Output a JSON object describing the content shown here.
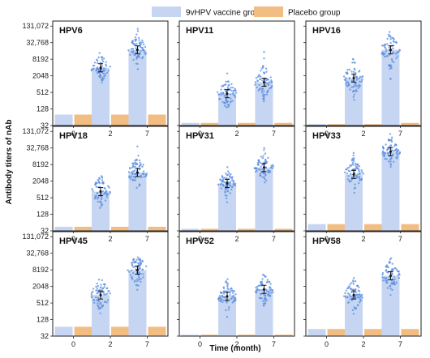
{
  "chart_data": {
    "type": "bar",
    "legend": {
      "position": "top",
      "entries": [
        {
          "name": "9vHPV vaccine group",
          "color": "#c6d6f2",
          "point_color": "#5b8ee0"
        },
        {
          "name": "Placebo group",
          "color": "#f2bd82",
          "point_color": "#e39a4a"
        }
      ]
    },
    "xlabel": "Time (month)",
    "ylabel": "Antibody titers of nAb",
    "categories": [
      "0",
      "2",
      "7"
    ],
    "y_scale": "log2",
    "yticks": [
      32,
      128,
      512,
      2048,
      8192,
      32768,
      131072
    ],
    "ytick_labels": [
      "32",
      "128",
      "512",
      "2048",
      "8192",
      "32,768",
      "131,072"
    ],
    "ylim": [
      32,
      200000
    ],
    "panels": [
      {
        "title": "HPV6",
        "vaccine_gmt": [
          80,
          4000,
          18000
        ],
        "placebo_gmt": [
          80,
          80,
          80
        ],
        "vaccine_spread": [
          0,
          0.55,
          0.6
        ]
      },
      {
        "title": "HPV11",
        "vaccine_gmt": [
          40,
          460,
          1200
        ],
        "placebo_gmt": [
          40,
          40,
          40
        ],
        "vaccine_spread": [
          0,
          0.6,
          0.6
        ]
      },
      {
        "title": "HPV16",
        "vaccine_gmt": [
          36,
          1700,
          18000
        ],
        "placebo_gmt": [
          36,
          36,
          40
        ],
        "vaccine_spread": [
          0,
          0.7,
          0.65
        ]
      },
      {
        "title": "HPV18",
        "vaccine_gmt": [
          45,
          850,
          4200
        ],
        "placebo_gmt": [
          45,
          45,
          45
        ],
        "vaccine_spread": [
          0,
          0.6,
          0.6
        ]
      },
      {
        "title": "HPV31",
        "vaccine_gmt": [
          38,
          1700,
          6400
        ],
        "placebo_gmt": [
          38,
          38,
          38
        ],
        "vaccine_spread": [
          0,
          0.5,
          0.55
        ]
      },
      {
        "title": "HPV33",
        "vaccine_gmt": [
          56,
          3600,
          24000
        ],
        "placebo_gmt": [
          56,
          56,
          56
        ],
        "vaccine_spread": [
          0,
          0.6,
          0.55
        ]
      },
      {
        "title": "HPV45",
        "vaccine_gmt": [
          70,
          1000,
          8000
        ],
        "placebo_gmt": [
          70,
          70,
          70
        ],
        "vaccine_spread": [
          0,
          0.65,
          0.6
        ]
      },
      {
        "title": "HPV52",
        "vaccine_gmt": [
          36,
          900,
          1600
        ],
        "placebo_gmt": [
          36,
          36,
          36
        ],
        "vaccine_spread": [
          0,
          0.55,
          0.55
        ]
      },
      {
        "title": "HPV58",
        "vaccine_gmt": [
          58,
          1000,
          5000
        ],
        "placebo_gmt": [
          58,
          58,
          58
        ],
        "vaccine_spread": [
          0,
          0.6,
          0.6
        ]
      }
    ]
  }
}
